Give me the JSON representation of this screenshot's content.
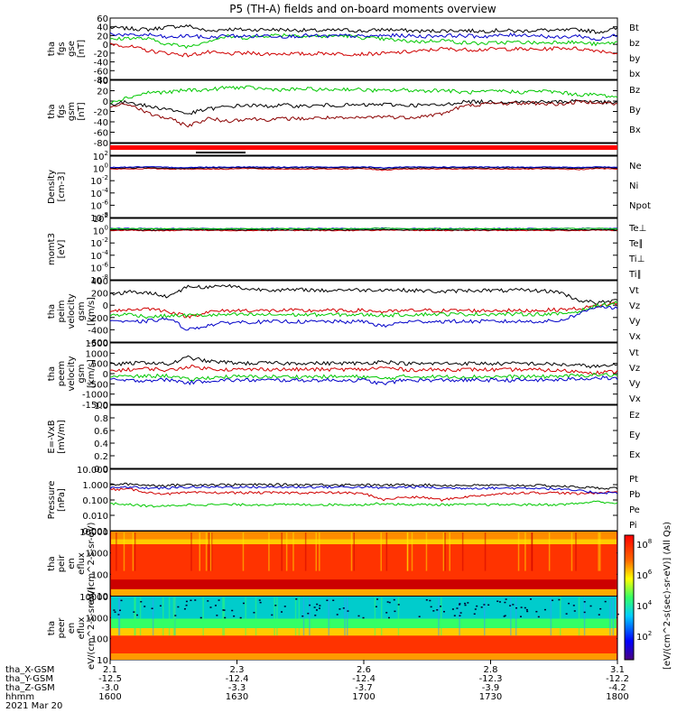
{
  "title": "P5 (TH-A) fields and on-board moments overview",
  "footer": {
    "row_labels": [
      "tha_X-GSM",
      "tha_Y-GSM",
      "tha_Z-GSM",
      "hhmm"
    ],
    "date": "2021 Mar 20",
    "ticks": [
      {
        "x": "2.1",
        "y": "-12.5",
        "z": "-3.0",
        "hhmm": "1600"
      },
      {
        "x": "2.3",
        "y": "-12.4",
        "z": "-3.3",
        "hhmm": "1630"
      },
      {
        "x": "2.6",
        "y": "-12.4",
        "z": "-3.7",
        "hhmm": "1700"
      },
      {
        "x": "2.8",
        "y": "-12.3",
        "z": "-3.9",
        "hhmm": "1730"
      },
      {
        "x": "3.1",
        "y": "-12.2",
        "z": "-4.2",
        "hhmm": "1800"
      }
    ]
  },
  "colorbar": {
    "label": "[eV/(cm^2-s(sec)-sr-eV)] (All Qs)",
    "ticks": [
      "10^8",
      "10^6",
      "10^4",
      "10^2"
    ]
  },
  "chart_data": [
    {
      "type": "line",
      "ylabel": "tha fgs gse [nT]",
      "ylim": [
        -80,
        60
      ],
      "ticks": [
        "60",
        "40",
        "20",
        "0",
        "-20",
        "-40",
        "-60",
        "-80"
      ],
      "series": [
        {
          "name": "Bt",
          "color": "#000000",
          "values": [
            38,
            36,
            34,
            40,
            42,
            30,
            35,
            33,
            34,
            33,
            32,
            31,
            33,
            30,
            34,
            32,
            30,
            31,
            32,
            30,
            32,
            30,
            33,
            31,
            34,
            28,
            36
          ]
        },
        {
          "name": "bz",
          "color": "#d00000",
          "values": [
            2,
            -5,
            -15,
            -20,
            -25,
            -18,
            -22,
            -20,
            -22,
            -21,
            -22,
            -20,
            -22,
            -22,
            -21,
            -18,
            -15,
            -10,
            -12,
            -12,
            -10,
            -11,
            -12,
            -8,
            -10,
            -14,
            -20
          ]
        },
        {
          "name": "by",
          "color": "#00c800",
          "values": [
            10,
            15,
            12,
            0,
            -5,
            8,
            18,
            15,
            20,
            22,
            19,
            18,
            20,
            15,
            12,
            8,
            6,
            10,
            4,
            2,
            4,
            5,
            3,
            6,
            4,
            0,
            5
          ]
        },
        {
          "name": "bx",
          "color": "#0000c8",
          "values": [
            25,
            20,
            22,
            15,
            20,
            15,
            20,
            18,
            20,
            18,
            20,
            18,
            20,
            18,
            20,
            20,
            18,
            20,
            20,
            18,
            20,
            22,
            20,
            15,
            20,
            10,
            22
          ]
        }
      ]
    },
    {
      "type": "line",
      "ylabel": "tha fgs gsm [nT]",
      "ylim": [
        -90,
        40
      ],
      "ticks": [
        "40",
        "20",
        "0",
        "-20",
        "-40",
        "-60",
        "-80"
      ],
      "series": [
        {
          "name": "Bz",
          "color": "#00c800",
          "values": [
            -5,
            5,
            15,
            15,
            20,
            20,
            25,
            25,
            22,
            20,
            22,
            20,
            22,
            20,
            18,
            20,
            18,
            20,
            15,
            15,
            18,
            15,
            18,
            15,
            10,
            10,
            5
          ]
        },
        {
          "name": "By",
          "color": "#000000",
          "values": [
            -10,
            -5,
            -15,
            -20,
            -30,
            -20,
            -15,
            -12,
            -14,
            -12,
            -14,
            -12,
            -12,
            -12,
            -10,
            -12,
            -12,
            -12,
            -5,
            -5,
            -5,
            -5,
            -5,
            -5,
            -2,
            -5,
            -8
          ]
        },
        {
          "name": "Bx",
          "color": "#8b0000",
          "values": [
            -15,
            -10,
            -30,
            -40,
            -55,
            -40,
            -45,
            -40,
            -42,
            -40,
            -40,
            -38,
            -40,
            -38,
            -35,
            -38,
            -35,
            -30,
            -15,
            -10,
            -8,
            -8,
            -8,
            -10,
            -5,
            -5,
            -10
          ]
        }
      ]
    },
    {
      "type": "line",
      "ylabel": "Density [cm-3]",
      "ylim_log": [
        -9,
        2
      ],
      "ticks": [
        "10^2",
        "10^0",
        "10^-2",
        "10^-4",
        "10^-6",
        "10^-8"
      ],
      "series": [
        {
          "name": "Ne",
          "color": "#d00000",
          "values": [
            0.5,
            0.5,
            0.6,
            0.5,
            0.5,
            0.5,
            0.5,
            0.6,
            0.5,
            0.5,
            0.5,
            0.5,
            0.5,
            0.6,
            0.3,
            0.5,
            0.5,
            0.5,
            0.5,
            0.5,
            0.5,
            0.5,
            0.5,
            0.5,
            0.4,
            0.6,
            0.5
          ]
        },
        {
          "name": "Ni",
          "color": "#000000",
          "values": [
            0.7,
            0.8,
            0.9,
            0.7,
            0.6,
            0.8,
            0.8,
            0.9,
            0.8,
            0.8,
            0.8,
            0.8,
            0.8,
            0.9,
            0.5,
            0.8,
            0.8,
            0.8,
            0.8,
            0.8,
            0.8,
            0.8,
            0.8,
            0.8,
            0.6,
            0.9,
            0.8
          ]
        },
        {
          "name": "Npot",
          "color": "#0000c8",
          "values": [
            1.0,
            1.1,
            1.2,
            1.0,
            0.9,
            1.1,
            1.1,
            1.2,
            1.1,
            1.1,
            1.1,
            1.1,
            1.1,
            1.2,
            0.8,
            1.1,
            1.1,
            1.1,
            1.1,
            1.1,
            1.1,
            1.1,
            1.1,
            1.1,
            0.9,
            1.2,
            1.1
          ]
        }
      ]
    },
    {
      "type": "line",
      "ylabel": "momt3 [eV]",
      "ylim_log": [
        -9,
        2
      ],
      "ticks": [
        "10^2",
        "10^0",
        "10^-2",
        "10^-4",
        "10^-6",
        "10^-8"
      ],
      "series": [
        {
          "name": "Te⊥",
          "color": "#d00000",
          "values": [
            0.7,
            0.8,
            0.6,
            0.7,
            0.8,
            0.7,
            0.7,
            0.7,
            0.7,
            0.7,
            0.7,
            0.7,
            0.7,
            0.7,
            0.8,
            0.7,
            0.7,
            0.7,
            0.7,
            0.7,
            0.7,
            0.7,
            0.7,
            0.7,
            0.7,
            0.8,
            0.7
          ]
        },
        {
          "name": "Te∥",
          "color": "#000000",
          "values": [
            0.9,
            1.0,
            0.8,
            0.9,
            1.0,
            0.9,
            0.9,
            0.9,
            0.9,
            0.9,
            0.9,
            0.9,
            0.9,
            0.9,
            1.0,
            0.9,
            0.9,
            0.9,
            0.9,
            0.9,
            0.9,
            0.9,
            0.9,
            0.9,
            0.9,
            1.0,
            0.9
          ]
        },
        {
          "name": "Ti⊥",
          "color": "#0000c8",
          "values": [
            1.5,
            1.6,
            1.5,
            1.5,
            1.6,
            1.5,
            1.5,
            1.5,
            1.5,
            1.5,
            1.5,
            1.5,
            1.5,
            1.5,
            1.8,
            1.5,
            1.5,
            1.5,
            1.5,
            1.5,
            1.5,
            1.5,
            1.5,
            1.5,
            1.6,
            1.7,
            1.5
          ]
        },
        {
          "name": "Ti∥",
          "color": "#00c800",
          "values": [
            1.4,
            1.5,
            1.4,
            1.4,
            1.5,
            1.4,
            1.4,
            1.4,
            1.4,
            1.4,
            1.4,
            1.4,
            1.4,
            1.4,
            1.7,
            1.4,
            1.4,
            1.4,
            1.4,
            1.4,
            1.4,
            1.4,
            1.4,
            1.4,
            1.5,
            1.6,
            1.4
          ]
        }
      ]
    },
    {
      "type": "line",
      "ylabel": "tha peim velocity gsm [km/s]",
      "ylim": [
        -600,
        500
      ],
      "ticks": [
        "400",
        "200",
        "0",
        "-200",
        "-400",
        "-600"
      ],
      "series": [
        {
          "name": "Vt",
          "color": "#000000",
          "values": [
            250,
            300,
            280,
            220,
            400,
            380,
            420,
            350,
            340,
            330,
            340,
            320,
            340,
            330,
            340,
            330,
            320,
            300,
            320,
            330,
            320,
            330,
            320,
            300,
            150,
            100,
            150
          ]
        },
        {
          "name": "Vz",
          "color": "#d00000",
          "values": [
            -30,
            -20,
            0,
            -50,
            -150,
            -60,
            -40,
            -30,
            -40,
            -30,
            -40,
            -30,
            -40,
            -30,
            -60,
            -40,
            -30,
            -40,
            -30,
            -40,
            -30,
            -40,
            -30,
            -20,
            0,
            50,
            100
          ]
        },
        {
          "name": "Vy",
          "color": "#00c800",
          "values": [
            -120,
            -100,
            -150,
            -130,
            -120,
            -120,
            -110,
            -110,
            -110,
            -110,
            -110,
            -110,
            -110,
            -110,
            -120,
            -110,
            -100,
            -100,
            -100,
            -100,
            -100,
            -100,
            -100,
            -100,
            -50,
            50,
            100
          ]
        },
        {
          "name": "Vx",
          "color": "#0000c8",
          "values": [
            -200,
            -250,
            -220,
            -180,
            -380,
            -300,
            -250,
            -240,
            -240,
            -230,
            -240,
            -230,
            -240,
            -230,
            -320,
            -240,
            -230,
            -230,
            -230,
            -230,
            -230,
            -230,
            -230,
            -220,
            -100,
            50,
            0
          ]
        }
      ]
    },
    {
      "type": "line",
      "ylabel": "tha peem velocity gsm [km/s]",
      "ylim": [
        -1500,
        1500
      ],
      "ticks": [
        "1500",
        "1000",
        "500",
        "0",
        "-500",
        "-1000",
        "-1500"
      ],
      "series": [
        {
          "name": "Vt",
          "color": "#000000",
          "values": [
            450,
            500,
            550,
            450,
            800,
            600,
            550,
            500,
            520,
            500,
            520,
            500,
            510,
            500,
            600,
            500,
            480,
            500,
            500,
            500,
            480,
            500,
            480,
            450,
            400,
            350,
            400
          ]
        },
        {
          "name": "Vz",
          "color": "#d00000",
          "values": [
            150,
            200,
            250,
            150,
            350,
            250,
            200,
            200,
            220,
            200,
            210,
            200,
            210,
            200,
            300,
            200,
            180,
            200,
            200,
            200,
            180,
            200,
            180,
            150,
            100,
            50,
            100
          ]
        },
        {
          "name": "Vy",
          "color": "#00c800",
          "values": [
            -100,
            -150,
            -120,
            -100,
            -300,
            -200,
            -150,
            -150,
            -150,
            -150,
            -150,
            -150,
            -150,
            -150,
            -250,
            -150,
            -150,
            -150,
            -150,
            -150,
            -150,
            -150,
            -150,
            -120,
            -100,
            -50,
            -80
          ]
        },
        {
          "name": "Vx",
          "color": "#0000c8",
          "values": [
            -300,
            -350,
            -320,
            -300,
            -450,
            -350,
            -320,
            -320,
            -320,
            -320,
            -320,
            -320,
            -320,
            -320,
            -500,
            -320,
            -320,
            -320,
            -320,
            -320,
            -320,
            -320,
            -320,
            -300,
            -250,
            -200,
            -250
          ]
        }
      ]
    },
    {
      "type": "line",
      "ylabel": "E=-VxB [mV/m]",
      "ylim": [
        0,
        1
      ],
      "ticks": [
        "1.0",
        "0.8",
        "0.6",
        "0.4",
        "0.2",
        "0.0"
      ],
      "series": [
        {
          "name": "Ez",
          "color": "#d00000",
          "values": []
        },
        {
          "name": "Ey",
          "color": "#00c800",
          "values": []
        },
        {
          "name": "Ex",
          "color": "#0000c8",
          "values": []
        }
      ]
    },
    {
      "type": "line",
      "ylabel": "Pressure [nPa]",
      "ylim_log": [
        -3,
        1
      ],
      "ticks": [
        "10.000",
        "1.000",
        "0.100",
        "0.010",
        "0.001"
      ],
      "series": [
        {
          "name": "Pt",
          "color": "#000000",
          "values": [
            1.0,
            1.1,
            0.9,
            0.9,
            1.0,
            1.0,
            1.0,
            1.0,
            1.0,
            1.0,
            1.0,
            1.0,
            1.0,
            1.0,
            0.9,
            1.0,
            1.0,
            0.9,
            0.9,
            0.9,
            0.9,
            0.9,
            0.9,
            0.8,
            0.7,
            0.6,
            0.6
          ]
        },
        {
          "name": "Pb",
          "color": "#d00000",
          "values": [
            0.5,
            0.5,
            0.3,
            0.25,
            0.3,
            0.3,
            0.3,
            0.3,
            0.3,
            0.3,
            0.3,
            0.3,
            0.3,
            0.25,
            0.1,
            0.15,
            0.15,
            0.1,
            0.15,
            0.2,
            0.25,
            0.3,
            0.3,
            0.3,
            0.25,
            0.3,
            0.35
          ]
        },
        {
          "name": "Pe",
          "color": "#00c800",
          "values": [
            0.06,
            0.05,
            0.04,
            0.04,
            0.05,
            0.05,
            0.05,
            0.05,
            0.05,
            0.05,
            0.05,
            0.05,
            0.05,
            0.05,
            0.06,
            0.05,
            0.05,
            0.05,
            0.05,
            0.05,
            0.05,
            0.05,
            0.05,
            0.05,
            0.06,
            0.08,
            0.06
          ]
        },
        {
          "name": "Pi",
          "color": "#0000c8",
          "values": [
            0.6,
            0.7,
            0.6,
            0.6,
            0.7,
            0.7,
            0.7,
            0.7,
            0.7,
            0.7,
            0.7,
            0.7,
            0.7,
            0.7,
            0.6,
            0.7,
            0.7,
            0.6,
            0.6,
            0.6,
            0.6,
            0.6,
            0.6,
            0.5,
            0.4,
            0.3,
            0.3
          ]
        }
      ]
    },
    {
      "type": "heatmap",
      "ylabel": "tha peir en eflux eV/(cm^2-s-sr-eV)",
      "ylim_log": [
        1,
        4.3
      ],
      "ticks": [
        "10000",
        "1000",
        "100",
        "10"
      ]
    },
    {
      "type": "heatmap",
      "ylabel": "tha peer en eflux eV/(cm^2-s-sr-eV)",
      "ylim_log": [
        1,
        4.3
      ],
      "ticks": [
        "10000",
        "1000",
        "100",
        "10"
      ]
    }
  ]
}
